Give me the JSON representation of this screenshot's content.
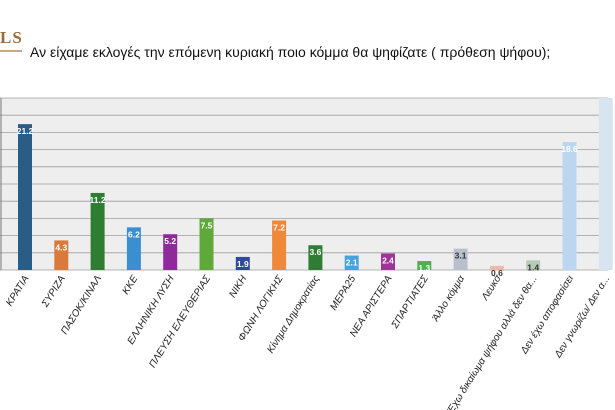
{
  "brand": {
    "logo_text": "LS"
  },
  "chart_data": {
    "type": "bar",
    "title": "Αν είχαμε εκλογές την επόμενη κυριακή ποιο κόμμα θα ψηφίζατε ( πρόθεση ψήφου);",
    "categories": [
      "ΝΕΑ ΔΗΜΟΚΡΑΤΙΑ",
      "ΣΥΡΙΖΑ",
      "ΠΑΣΟΚ/ΚΙΝΑΛ",
      "ΚΚΕ",
      "ΕΛΛΗΝΙΚΗ ΛΥΣΗ",
      "ΠΛΕΥΣΗ ΕΛΕΥΘΕΡΙΑΣ",
      "ΝΙΚΗ",
      "ΦΩΝΗ ΛΟΓΙΚΗΣ",
      "Κίνημα Δημοκρατίας",
      "ΜΕΡΑ25",
      "ΝΕΑ ΑΡΙΣΤΕΡΑ",
      "ΣΠΑΡΤΙΑΤΕΣ",
      "Άλλο κόμμα",
      "Λευκό",
      "Έχω δικαίωμα ψήφου αλλά δεν θα ψηφίσω",
      "Δεν έχω αποφασίσει",
      "Δεν γνωρίζω/ Δεν απαντώ"
    ],
    "visible_category_labels": [
      "ΚΡΑΤΙΑ",
      "ΣΥΡΙΖΑ",
      "ΠΑΣΟΚ/ΚΙΝΑΛ",
      "ΚΚΕ",
      "ΕΛΛΗΝΙΚΗ ΛΥΣΗ",
      "ΠΛΕΥΣΗ ΕΛΕΥΘΕΡΙΑΣ",
      "ΝΙΚΗ",
      "ΦΩΝΗ ΛΟΓΙΚΗΣ",
      "Κίνημα Δημοκρατίας",
      "ΜΕΡΑ25",
      "ΝΕΑ ΑΡΙΣΤΕΡΑ",
      "ΣΠΑΡΤΙΑΤΕΣ",
      "Άλλο κόμμα",
      "Λευκό",
      "Έχω δικαίωμα ψήφου αλλά δεν θα...",
      "Δεν έχω αποφασίσει",
      "Δεν γνωρίζω/ Δεν α..."
    ],
    "values": [
      21.2,
      4.3,
      11.2,
      6.2,
      5.2,
      7.5,
      1.9,
      7.2,
      3.6,
      2.1,
      2.4,
      1.3,
      3.1,
      0.6,
      1.4,
      18.6,
      null
    ],
    "value_labels": [
      "21.2",
      "4.3",
      "11.2",
      "6.2",
      "5.2",
      "7.5",
      "1.9",
      "7.2",
      "3.6",
      "2.1",
      "2.4",
      "1.3",
      "3.1",
      "0.6",
      "1.4",
      "18.6",
      ""
    ],
    "colors": [
      "#2a5d86",
      "#d9793a",
      "#2e7d32",
      "#3a8fd1",
      "#8e2a9a",
      "#5fa83a",
      "#2e4a9e",
      "#f0883a",
      "#2e7d32",
      "#45a3e0",
      "#a0339b",
      "#4caf50",
      "#b8c0cc",
      "#f0b8a8",
      "#b6ccb6",
      "#bcd6f2",
      "#d8e4f0"
    ],
    "dark_label_indices": [
      12,
      13,
      14
    ],
    "ylim": [
      0,
      25
    ],
    "grid": true,
    "legend": "none",
    "xlabel": "",
    "ylabel": ""
  }
}
